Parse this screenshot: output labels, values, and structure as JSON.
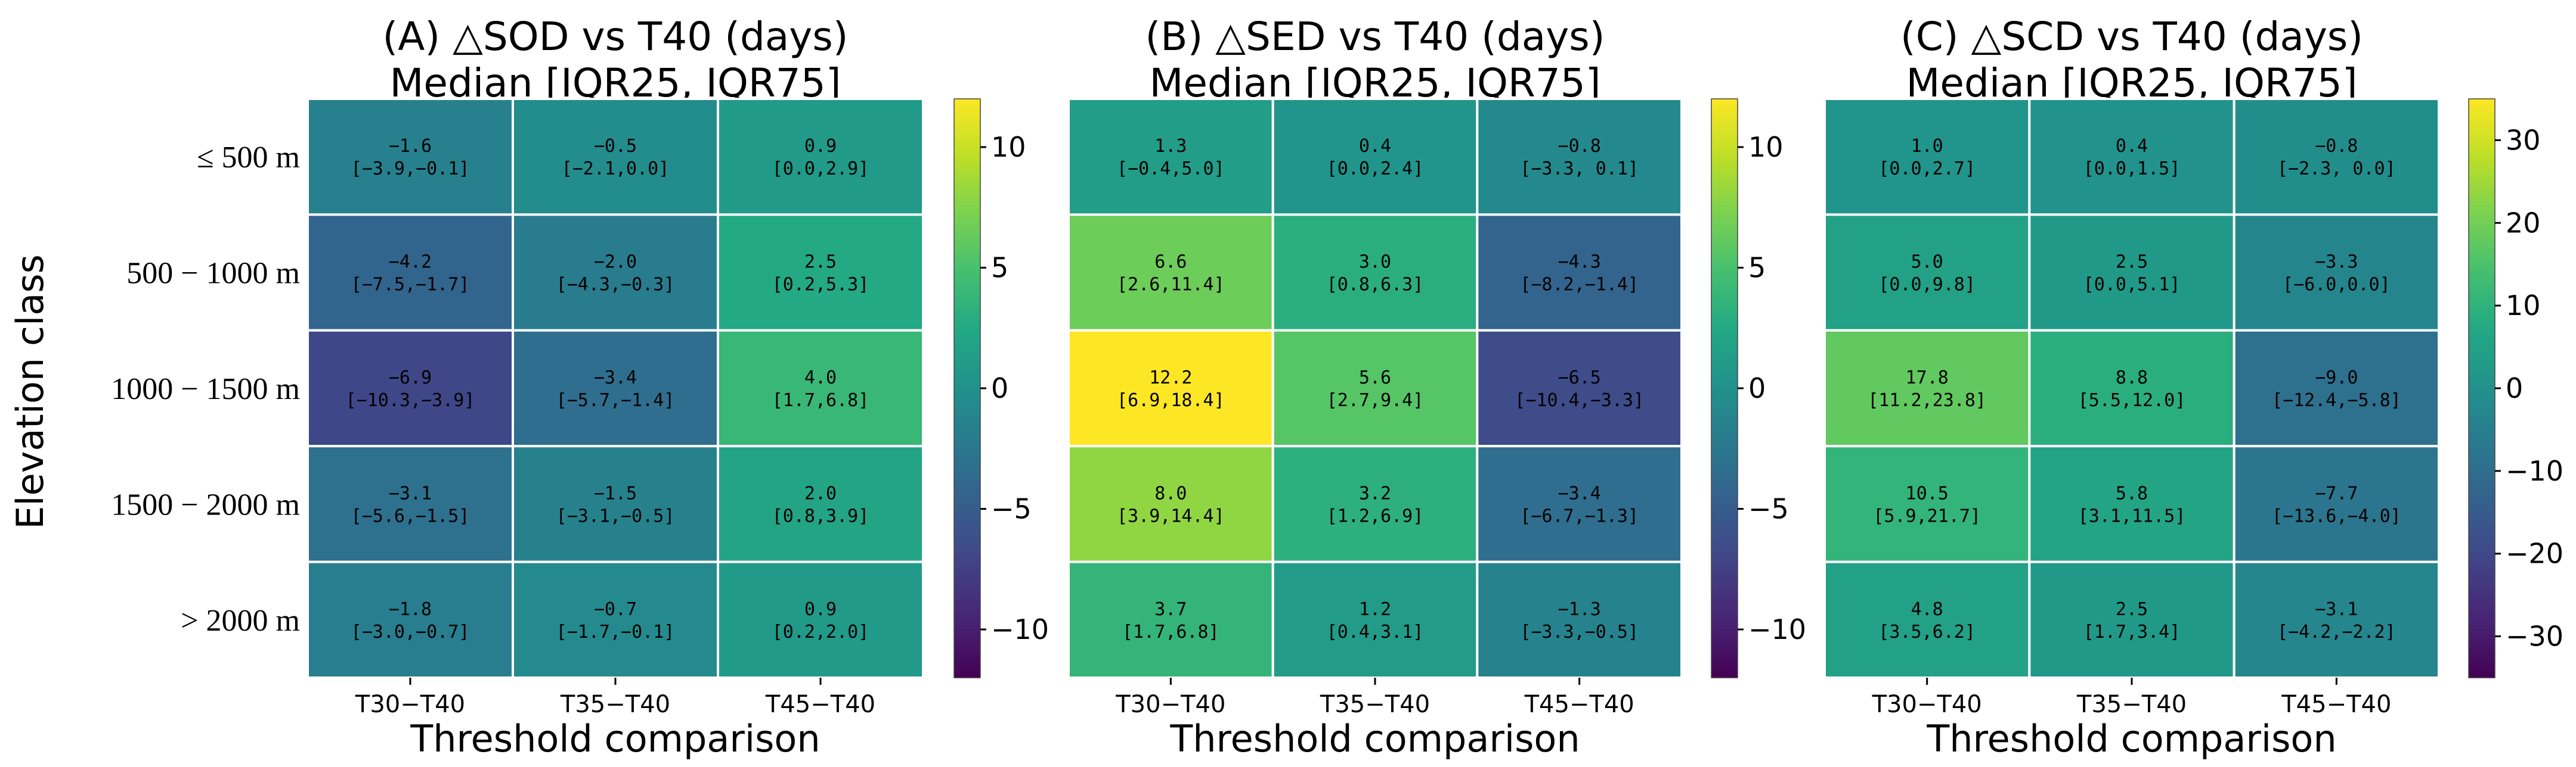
{
  "chart_data": [
    {
      "type": "heatmap",
      "title": "(A) △SOD vs T40 (days)",
      "subtitle": "Median [IQR25, IQR75]",
      "xlabel": "Threshold comparison",
      "ylabel": "Elevation class",
      "x_categories": [
        "T30−T40",
        "T35−T40",
        "T45−T40"
      ],
      "y_categories": [
        "≤ 500 m",
        "500 − 1000 m",
        "1000 − 1500 m",
        "1500 − 2000 m",
        "> 2000 m"
      ],
      "values": [
        [
          -1.6,
          -0.5,
          0.9
        ],
        [
          -4.2,
          -2.0,
          2.5
        ],
        [
          -6.9,
          -3.4,
          4.0
        ],
        [
          -3.1,
          -1.5,
          2.0
        ],
        [
          -1.8,
          -0.7,
          0.9
        ]
      ],
      "cell_labels": [
        [
          "−1.6",
          "−0.5",
          "0.9"
        ],
        [
          "−4.2",
          "−2.0",
          "2.5"
        ],
        [
          "−6.9",
          "−3.4",
          "4.0"
        ],
        [
          "−3.1",
          "−1.5",
          "2.0"
        ],
        [
          "−1.8",
          "−0.7",
          "0.9"
        ]
      ],
      "cell_iqr": [
        [
          "[−3.9,−0.1]",
          "[−2.1,0.0]",
          "[0.0,2.9]"
        ],
        [
          "[−7.5,−1.7]",
          "[−4.3,−0.3]",
          "[0.2,5.3]"
        ],
        [
          "[−10.3,−3.9]",
          "[−5.7,−1.4]",
          "[1.7,6.8]"
        ],
        [
          "[−5.6,−1.5]",
          "[−3.1,−0.5]",
          "[0.8,3.9]"
        ],
        [
          "[−3.0,−0.7]",
          "[−1.7,−0.1]",
          "[0.2,2.0]"
        ]
      ],
      "colorbar": {
        "vmin": -12,
        "vmax": 12,
        "ticks": [
          -10,
          -5,
          0,
          5,
          10
        ],
        "tick_labels": [
          "−10",
          "−5",
          "0",
          "5",
          "10"
        ]
      }
    },
    {
      "type": "heatmap",
      "title": "(B) △SED vs T40 (days)",
      "subtitle": "Median [IQR25, IQR75]",
      "xlabel": "Threshold comparison",
      "ylabel": "",
      "x_categories": [
        "T30−T40",
        "T35−T40",
        "T45−T40"
      ],
      "y_categories": [],
      "values": [
        [
          1.3,
          0.4,
          -0.8
        ],
        [
          6.6,
          3.0,
          -4.3
        ],
        [
          12.2,
          5.6,
          -6.5
        ],
        [
          8.0,
          3.2,
          -3.4
        ],
        [
          3.7,
          1.2,
          -1.3
        ]
      ],
      "cell_labels": [
        [
          "1.3",
          "0.4",
          "−0.8"
        ],
        [
          "6.6",
          "3.0",
          "−4.3"
        ],
        [
          "12.2",
          "5.6",
          "−6.5"
        ],
        [
          "8.0",
          "3.2",
          "−3.4"
        ],
        [
          "3.7",
          "1.2",
          "−1.3"
        ]
      ],
      "cell_iqr": [
        [
          "[−0.4,5.0]",
          "[0.0,2.4]",
          "[−3.3, 0.1]"
        ],
        [
          "[2.6,11.4]",
          "[0.8,6.3]",
          "[−8.2,−1.4]"
        ],
        [
          "[6.9,18.4]",
          "[2.7,9.4]",
          "[−10.4,−3.3]"
        ],
        [
          "[3.9,14.4]",
          "[1.2,6.9]",
          "[−6.7,−1.3]"
        ],
        [
          "[1.7,6.8]",
          "[0.4,3.1]",
          "[−3.3,−0.5]"
        ]
      ],
      "colorbar": {
        "vmin": -12,
        "vmax": 12,
        "ticks": [
          -10,
          -5,
          0,
          5,
          10
        ],
        "tick_labels": [
          "−10",
          "−5",
          "0",
          "5",
          "10"
        ]
      }
    },
    {
      "type": "heatmap",
      "title": "(C) △SCD vs T40 (days)",
      "subtitle": "Median [IQR25, IQR75]",
      "xlabel": "Threshold comparison",
      "ylabel": "",
      "x_categories": [
        "T30−T40",
        "T35−T40",
        "T45−T40"
      ],
      "y_categories": [],
      "values": [
        [
          1.0,
          0.4,
          -0.8
        ],
        [
          5.0,
          2.5,
          -3.3
        ],
        [
          17.8,
          8.8,
          -9.0
        ],
        [
          10.5,
          5.8,
          -7.7
        ],
        [
          4.8,
          2.5,
          -3.1
        ]
      ],
      "cell_labels": [
        [
          "1.0",
          "0.4",
          "−0.8"
        ],
        [
          "5.0",
          "2.5",
          "−3.3"
        ],
        [
          "17.8",
          "8.8",
          "−9.0"
        ],
        [
          "10.5",
          "5.8",
          "−7.7"
        ],
        [
          "4.8",
          "2.5",
          "−3.1"
        ]
      ],
      "cell_iqr": [
        [
          "[0.0,2.7]",
          "[0.0,1.5]",
          "[−2.3, 0.0]"
        ],
        [
          "[0.0,9.8]",
          "[0.0,5.1]",
          "[−6.0,0.0]"
        ],
        [
          "[11.2,23.8]",
          "[5.5,12.0]",
          "[−12.4,−5.8]"
        ],
        [
          "[5.9,21.7]",
          "[3.1,11.5]",
          "[−13.6,−4.0]"
        ],
        [
          "[3.5,6.2]",
          "[1.7,3.4]",
          "[−4.2,−2.2]"
        ]
      ],
      "colorbar": {
        "vmin": -35,
        "vmax": 35,
        "ticks": [
          -30,
          -20,
          -10,
          0,
          10,
          20,
          30
        ],
        "tick_labels": [
          "−30",
          "−20",
          "−10",
          "0",
          "10",
          "20",
          "30"
        ]
      }
    }
  ],
  "colormap": "viridis",
  "colors": {
    "grid_line": "#ffffff",
    "tick": "#000000"
  }
}
